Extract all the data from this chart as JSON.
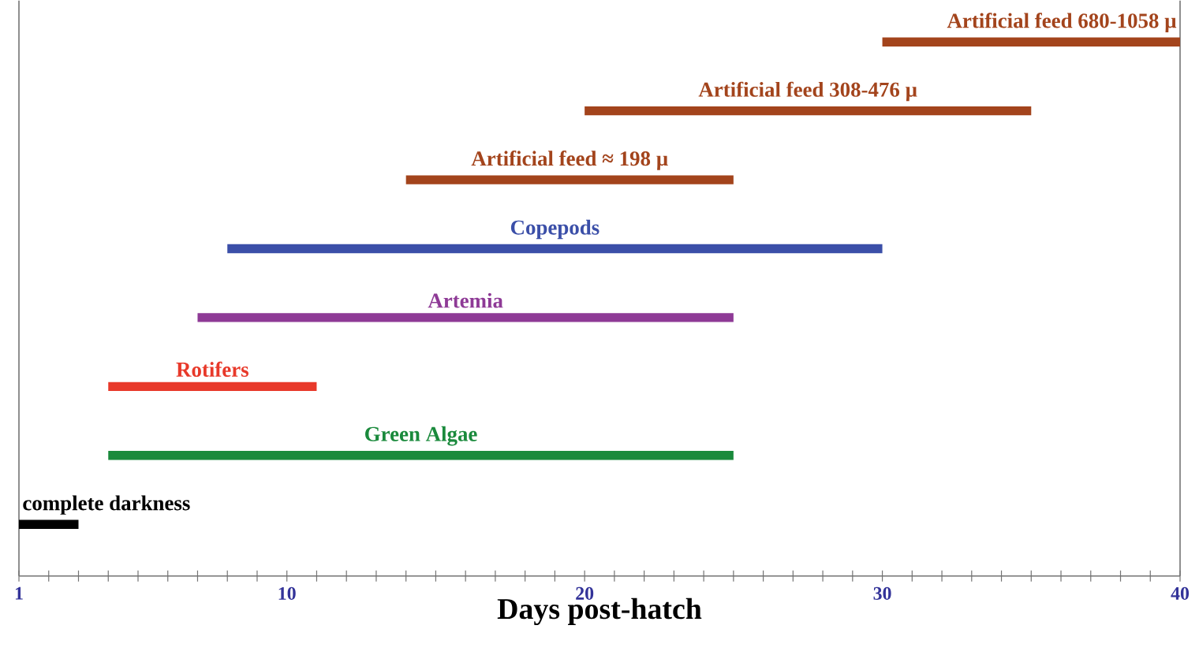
{
  "chart_data": {
    "type": "bar",
    "orientation": "horizontal",
    "xlabel": "Days post-hatch",
    "categories": [
      "Artificial feed 680-1058 µ",
      "Artificial feed 308-476 µ",
      "Artificial feed ≈ 198 µ",
      "Copepods",
      "Artemia",
      "Rotifers",
      "Green Algae",
      "complete darkness"
    ],
    "base": [
      30,
      20,
      14,
      8,
      7,
      4,
      4,
      1
    ],
    "values": [
      10,
      15,
      11,
      22,
      18,
      7,
      21,
      2
    ],
    "colors": [
      "#a3441c",
      "#a3441c",
      "#a3441c",
      "#3b4fa8",
      "#8e3a96",
      "#e8392a",
      "#1a8a3c",
      "#000000"
    ],
    "xlim": [
      1,
      40
    ],
    "xticks": [
      1,
      {
        "value": 2,
        "label": null
      },
      {
        "value": 3,
        "label": null
      },
      {
        "value": 4,
        "label": null
      },
      {
        "value": 5,
        "label": null
      },
      {
        "value": 6,
        "label": null
      },
      {
        "value": 7,
        "label": null
      },
      {
        "value": 8,
        "label": null
      },
      {
        "value": 9,
        "label": null
      },
      10,
      {
        "value": 11,
        "label": null
      },
      {
        "value": 12,
        "label": null
      },
      {
        "value": 13,
        "label": null
      },
      {
        "value": 14,
        "label": null
      },
      {
        "value": 15,
        "label": null
      },
      {
        "value": 16,
        "label": null
      },
      {
        "value": 17,
        "label": null
      },
      {
        "value": 18,
        "label": null
      },
      {
        "value": 19,
        "label": null
      },
      20,
      {
        "value": 21,
        "label": null
      },
      {
        "value": 22,
        "label": null
      },
      {
        "value": 23,
        "label": null
      },
      {
        "value": 24,
        "label": null
      },
      {
        "value": 25,
        "label": null
      },
      {
        "value": 26,
        "label": null
      },
      {
        "value": 27,
        "label": null
      },
      {
        "value": 28,
        "label": null
      },
      {
        "value": 29,
        "label": null
      },
      30,
      {
        "value": 31,
        "label": null
      },
      {
        "value": 32,
        "label": null
      },
      {
        "value": 33,
        "label": null
      },
      {
        "value": 34,
        "label": null
      },
      {
        "value": 35,
        "label": null
      },
      {
        "value": 36,
        "label": null
      },
      {
        "value": 37,
        "label": null
      },
      {
        "value": 38,
        "label": null
      },
      {
        "value": 39,
        "label": null
      },
      40
    ]
  }
}
